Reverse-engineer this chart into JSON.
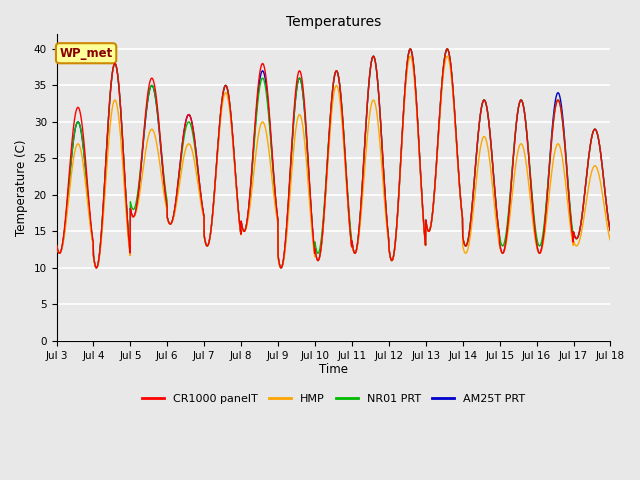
{
  "title": "Temperatures",
  "xlabel": "Time",
  "ylabel": "Temperature (C)",
  "ylim": [
    0,
    42
  ],
  "yticks": [
    0,
    5,
    10,
    15,
    20,
    25,
    30,
    35,
    40
  ],
  "xlim_days": [
    3,
    18
  ],
  "xtick_days": [
    3,
    4,
    5,
    6,
    7,
    8,
    9,
    10,
    11,
    12,
    13,
    14,
    15,
    16,
    17,
    18
  ],
  "xtick_labels": [
    "Jul 3",
    "Jul 4",
    "Jul 5",
    "Jul 6",
    "Jul 7",
    "Jul 8",
    "Jul 9",
    "Jul 10",
    "Jul 11",
    "Jul 12",
    "Jul 13",
    "Jul 14",
    "Jul 15",
    "Jul 16",
    "Jul 17",
    "Jul 18"
  ],
  "plot_bg": "#e8e8e8",
  "fig_bg": "#e8e8e8",
  "grid_color": "#ffffff",
  "series": {
    "CR1000_panelT": {
      "color": "#ff0000",
      "label": "CR1000 panelT",
      "lw": 1.0
    },
    "HMP": {
      "color": "#ffa500",
      "label": "HMP",
      "lw": 1.0
    },
    "NR01_PRT": {
      "color": "#00bb00",
      "label": "NR01 PRT",
      "lw": 1.0
    },
    "AM25T_PRT": {
      "color": "#0000cc",
      "label": "AM25T PRT",
      "lw": 1.0
    }
  },
  "annotation_text": "WP_met",
  "annotation_bbox": {
    "facecolor": "#ffff99",
    "edgecolor": "#cc8800",
    "boxstyle": "round,pad=0.3"
  },
  "annotation_color": "#880000",
  "day_peaks_cr1000": [
    32,
    38,
    36,
    31,
    35,
    38,
    37,
    37,
    39,
    40,
    40,
    33,
    33,
    33,
    29
  ],
  "day_mins_cr1000": [
    12,
    10,
    17,
    16,
    13,
    15,
    10,
    11,
    12,
    11,
    15,
    13,
    12,
    12,
    14
  ],
  "day_peaks_hmp": [
    27,
    33,
    29,
    27,
    34,
    30,
    31,
    35,
    33,
    39,
    39,
    28,
    27,
    27,
    24
  ],
  "day_mins_hmp": [
    12,
    10,
    17,
    16,
    13,
    15,
    10,
    11,
    12,
    11,
    15,
    12,
    12,
    12,
    13
  ],
  "day_peaks_nr01": [
    30,
    38,
    35,
    30,
    35,
    36,
    36,
    37,
    39,
    40,
    40,
    33,
    33,
    33,
    29
  ],
  "day_mins_nr01": [
    12,
    10,
    18,
    16,
    13,
    15,
    10,
    12,
    12,
    11,
    15,
    13,
    13,
    13,
    14
  ],
  "day_peaks_am25": [
    30,
    38,
    35,
    31,
    35,
    37,
    36,
    37,
    39,
    40,
    40,
    33,
    33,
    34,
    29
  ],
  "day_mins_am25": [
    12,
    10,
    17,
    16,
    13,
    15,
    10,
    11,
    12,
    11,
    15,
    13,
    12,
    12,
    14
  ]
}
